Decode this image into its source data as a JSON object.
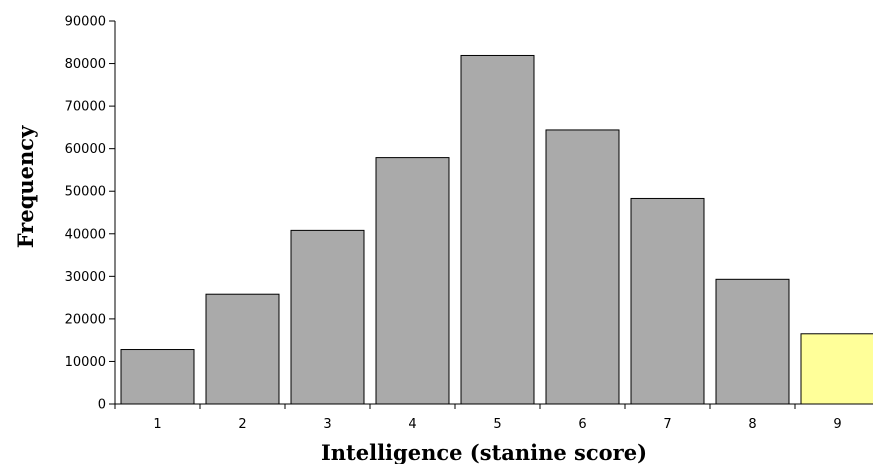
{
  "chart_data": {
    "type": "bar",
    "title": "",
    "xlabel": "Intelligence (stanine score)",
    "ylabel": "Frequency",
    "categories": [
      "1",
      "2",
      "3",
      "4",
      "5",
      "6",
      "7",
      "8",
      "9"
    ],
    "values": [
      12800,
      25800,
      40800,
      57900,
      81900,
      64400,
      48300,
      29300,
      16500
    ],
    "ylim": [
      0,
      90000
    ],
    "yticks": [
      0,
      10000,
      20000,
      30000,
      40000,
      50000,
      60000,
      70000,
      80000,
      90000
    ],
    "grid": false,
    "legend": "none",
    "colors": {
      "bar": "#aaaaaa",
      "highlight_bar": "#ffff99",
      "bar_stroke": "#000000",
      "axis": "#000000"
    },
    "highlight_index": 8
  }
}
